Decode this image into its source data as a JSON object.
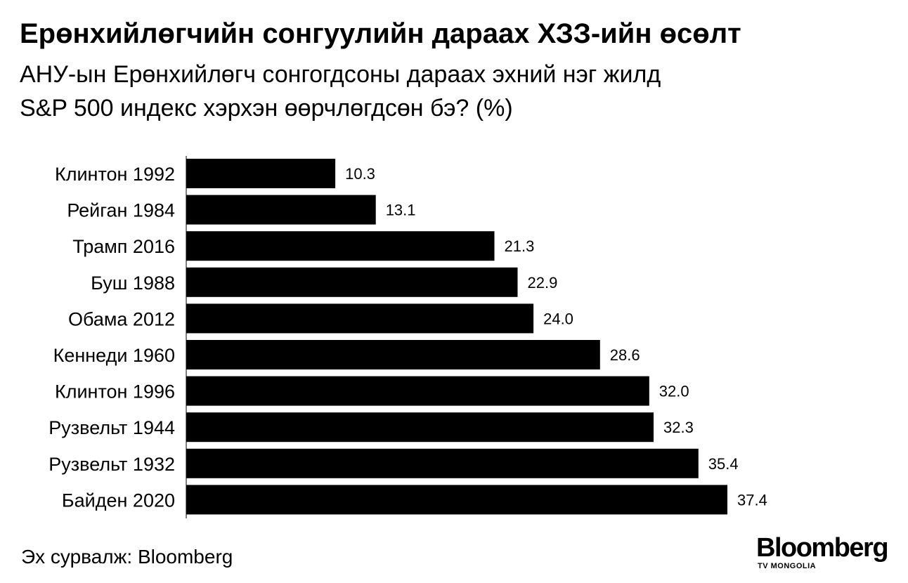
{
  "header": {
    "title": "Ерөнхийлөгчийн сонгуулийн дараах ХЗЗ-ийн өсөлт",
    "subtitle": "АНУ-ын Ерөнхийлөгч сонгогдсоны дараах эхний нэг жилд\nS&P 500 индекс хэрхэн өөрчлөгдсөн бэ? (%)"
  },
  "chart_data": {
    "type": "bar",
    "orientation": "horizontal",
    "categories": [
      "Клинтон 1992",
      "Рейган 1984",
      "Трамп 2016",
      "Буш 1988",
      "Обама 2012",
      "Кеннеди 1960",
      "Клинтон 1996",
      "Рузвельт 1944",
      "Рузвельт 1932",
      "Байден 2020"
    ],
    "values": [
      10.3,
      13.1,
      21.3,
      22.9,
      24.0,
      28.6,
      32.0,
      32.3,
      35.4,
      37.4
    ],
    "value_labels": [
      "10.3",
      "13.1",
      "21.3",
      "22.9",
      "24.0",
      "28.6",
      "32.0",
      "32.3",
      "35.4",
      "37.4"
    ],
    "title": "Ерөнхийлөгчийн сонгуулийн дараах ХЗЗ-ийн өсөлт",
    "xlabel": "",
    "ylabel": "",
    "xlim": [
      0,
      37.4
    ],
    "grid": false,
    "bar_color": "#000000"
  },
  "footer": {
    "source_label": "Эх сурвалж:",
    "source_name": "Bloomberg"
  },
  "logo": {
    "word": "Bloomberg",
    "sub": "TV MONGOLIA"
  }
}
